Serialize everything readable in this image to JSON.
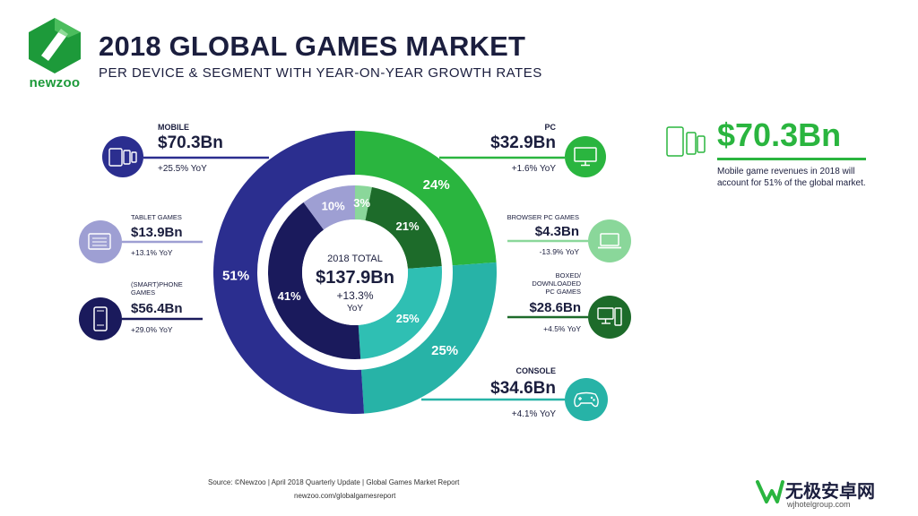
{
  "brand": {
    "logo_text": "newzoo"
  },
  "header": {
    "title": "2018 GLOBAL GAMES MARKET",
    "subtitle": "PER DEVICE & SEGMENT WITH YEAR-ON-YEAR GROWTH RATES"
  },
  "center": {
    "label": "2018 TOTAL",
    "value": "$137.9Bn",
    "growth": "+13.3%",
    "growth_unit": "YoY"
  },
  "left": {
    "mobile": {
      "label": "MOBILE",
      "value": "$70.3Bn",
      "yoy": "+25.5% YoY",
      "icon": "mobile-devices-icon"
    },
    "tablet": {
      "label": "TABLET GAMES",
      "value": "$13.9Bn",
      "yoy": "+13.1% YoY",
      "icon": "tablet-icon"
    },
    "smartphone": {
      "label_line1": "(SMART)PHONE",
      "label_line2": "GAMES",
      "value": "$56.4Bn",
      "yoy": "+29.0% YoY",
      "icon": "smartphone-icon"
    }
  },
  "right": {
    "pc": {
      "label": "PC",
      "value": "$32.9Bn",
      "yoy": "+1.6% YoY",
      "icon": "monitor-icon"
    },
    "browser": {
      "label": "BROWSER PC GAMES",
      "value": "$4.3Bn",
      "yoy": "-13.9% YoY",
      "icon": "laptop-icon"
    },
    "boxed": {
      "label_line1": "BOXED/",
      "label_line2": "DOWNLOADED",
      "label_line3": "PC GAMES",
      "value": "$28.6Bn",
      "yoy": "+4.5% YoY",
      "icon": "desktop-pc-icon"
    },
    "console": {
      "label": "CONSOLE",
      "value": "$34.6Bn",
      "yoy": "+4.1% YoY",
      "icon": "gamepad-icon"
    }
  },
  "callout": {
    "value": "$70.3Bn",
    "text": "Mobile game revenues in 2018 will account for 51% of the global market."
  },
  "footer": {
    "source": "Source: ©Newzoo | April 2018 Quarterly Update | Global Games Market Report",
    "url": "newzoo.com/globalgamesreport"
  },
  "watermark": {
    "cn": "无极安卓网",
    "en": "wjhotelgroup.com"
  },
  "colors": {
    "mobile": "#2b2e8f",
    "tablet": "#9e9fd3",
    "smartphone": "#1a1a5c",
    "pc": "#2ab53f",
    "browser": "#8ad79a",
    "boxed": "#1d6b2a",
    "console": "#27b3a7",
    "console_inner": "#2fbfb3",
    "text": "#1b1e3e"
  },
  "chart_data": {
    "type": "pie",
    "title": "2018 GLOBAL GAMES MARKET",
    "total": {
      "label": "2018 TOTAL",
      "value": 137.9,
      "unit": "$Bn"
    },
    "outer_ring": {
      "name": "Device",
      "slices": [
        {
          "label": "PC",
          "value": 32.9,
          "percent": 24
        },
        {
          "label": "CONSOLE",
          "value": 34.6,
          "percent": 25
        },
        {
          "label": "MOBILE",
          "value": 70.3,
          "percent": 51
        }
      ]
    },
    "inner_ring": {
      "name": "Segment",
      "slices": [
        {
          "label": "BROWSER PC GAMES",
          "value": 4.3,
          "percent": 3
        },
        {
          "label": "BOXED/DOWNLOADED PC GAMES",
          "value": 28.6,
          "percent": 21
        },
        {
          "label": "CONSOLE",
          "value": 34.6,
          "percent": 25
        },
        {
          "label": "(SMART)PHONE GAMES",
          "value": 56.4,
          "percent": 41
        },
        {
          "label": "TABLET GAMES",
          "value": 13.9,
          "percent": 10
        }
      ]
    }
  }
}
